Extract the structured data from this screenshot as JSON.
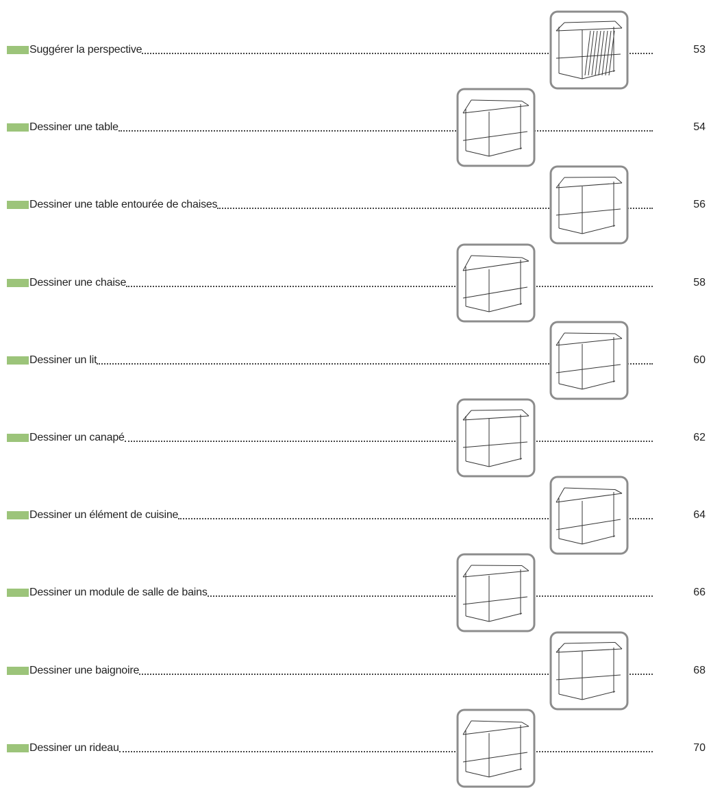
{
  "entries": [
    {
      "title": "Suggérer la perspective",
      "page": "53"
    },
    {
      "title": "Dessiner une table",
      "page": "54"
    },
    {
      "title": "Dessiner une table entourée de chaises",
      "page": "56"
    },
    {
      "title": "Dessiner une chaise",
      "page": "58"
    },
    {
      "title": "Dessiner un lit",
      "page": "60"
    },
    {
      "title": "Dessiner un canapé",
      "page": "62"
    },
    {
      "title": "Dessiner un élément de cuisine",
      "page": "64"
    },
    {
      "title": "Dessiner un module de salle de bains",
      "page": "66"
    },
    {
      "title": "Dessiner une baignoire",
      "page": "68"
    },
    {
      "title": "Dessiner un rideau",
      "page": "70"
    }
  ]
}
